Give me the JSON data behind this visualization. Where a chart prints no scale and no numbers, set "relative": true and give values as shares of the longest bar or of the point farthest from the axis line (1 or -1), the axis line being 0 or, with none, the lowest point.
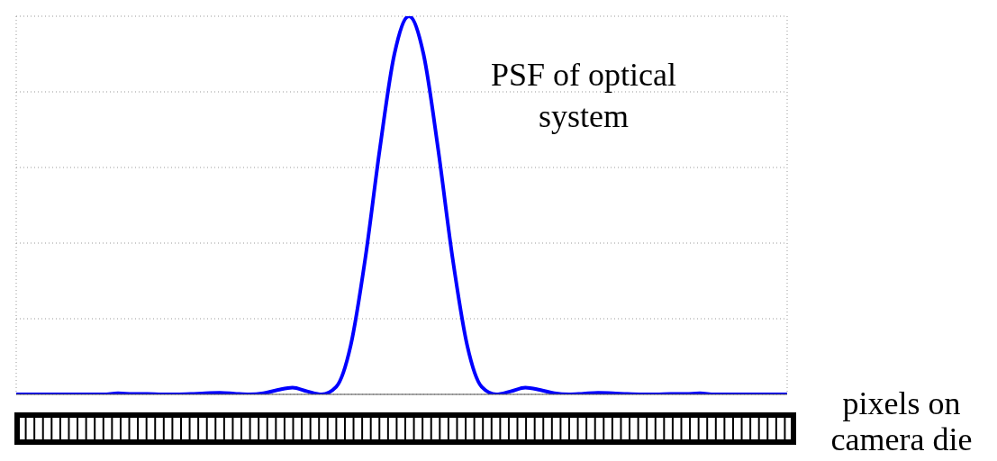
{
  "chart_data": {
    "type": "line",
    "relative": true,
    "categories": [
      null,
      null,
      null,
      null,
      null,
      null,
      null,
      null,
      null,
      null,
      null,
      null,
      null,
      null,
      null,
      null,
      null,
      null,
      null,
      null,
      null,
      null,
      null,
      null,
      null,
      null,
      null,
      null,
      null,
      null,
      null,
      null,
      null,
      null,
      null,
      null,
      null,
      null,
      null,
      null,
      null,
      null,
      null,
      null,
      null,
      null,
      null,
      null,
      null,
      null,
      null,
      null,
      null,
      null
    ],
    "series": [
      {
        "color": "#0000ff",
        "values": [
          0,
          0,
          0,
          0,
          0,
          0,
          0,
          0.003,
          0.001,
          0.001,
          0,
          0,
          0.001,
          0.003,
          0.004,
          0.002,
          0,
          0.003,
          0.012,
          0.018,
          0.008,
          0,
          0.02,
          0.13,
          0.36,
          0.65,
          0.9,
          1,
          0.9,
          0.65,
          0.36,
          0.13,
          0.02,
          0,
          0.008,
          0.018,
          0.012,
          0.003,
          0,
          0.002,
          0.004,
          0.003,
          0.001,
          0,
          0,
          0.001,
          0.001,
          0.003,
          0,
          0,
          0,
          0,
          0,
          0
        ]
      }
    ],
    "annotations": [
      "PSF of optical system",
      "pixels on camera die"
    ],
    "grid": true,
    "tick_labels": false,
    "marker": "none",
    "line_style": "solid"
  }
}
